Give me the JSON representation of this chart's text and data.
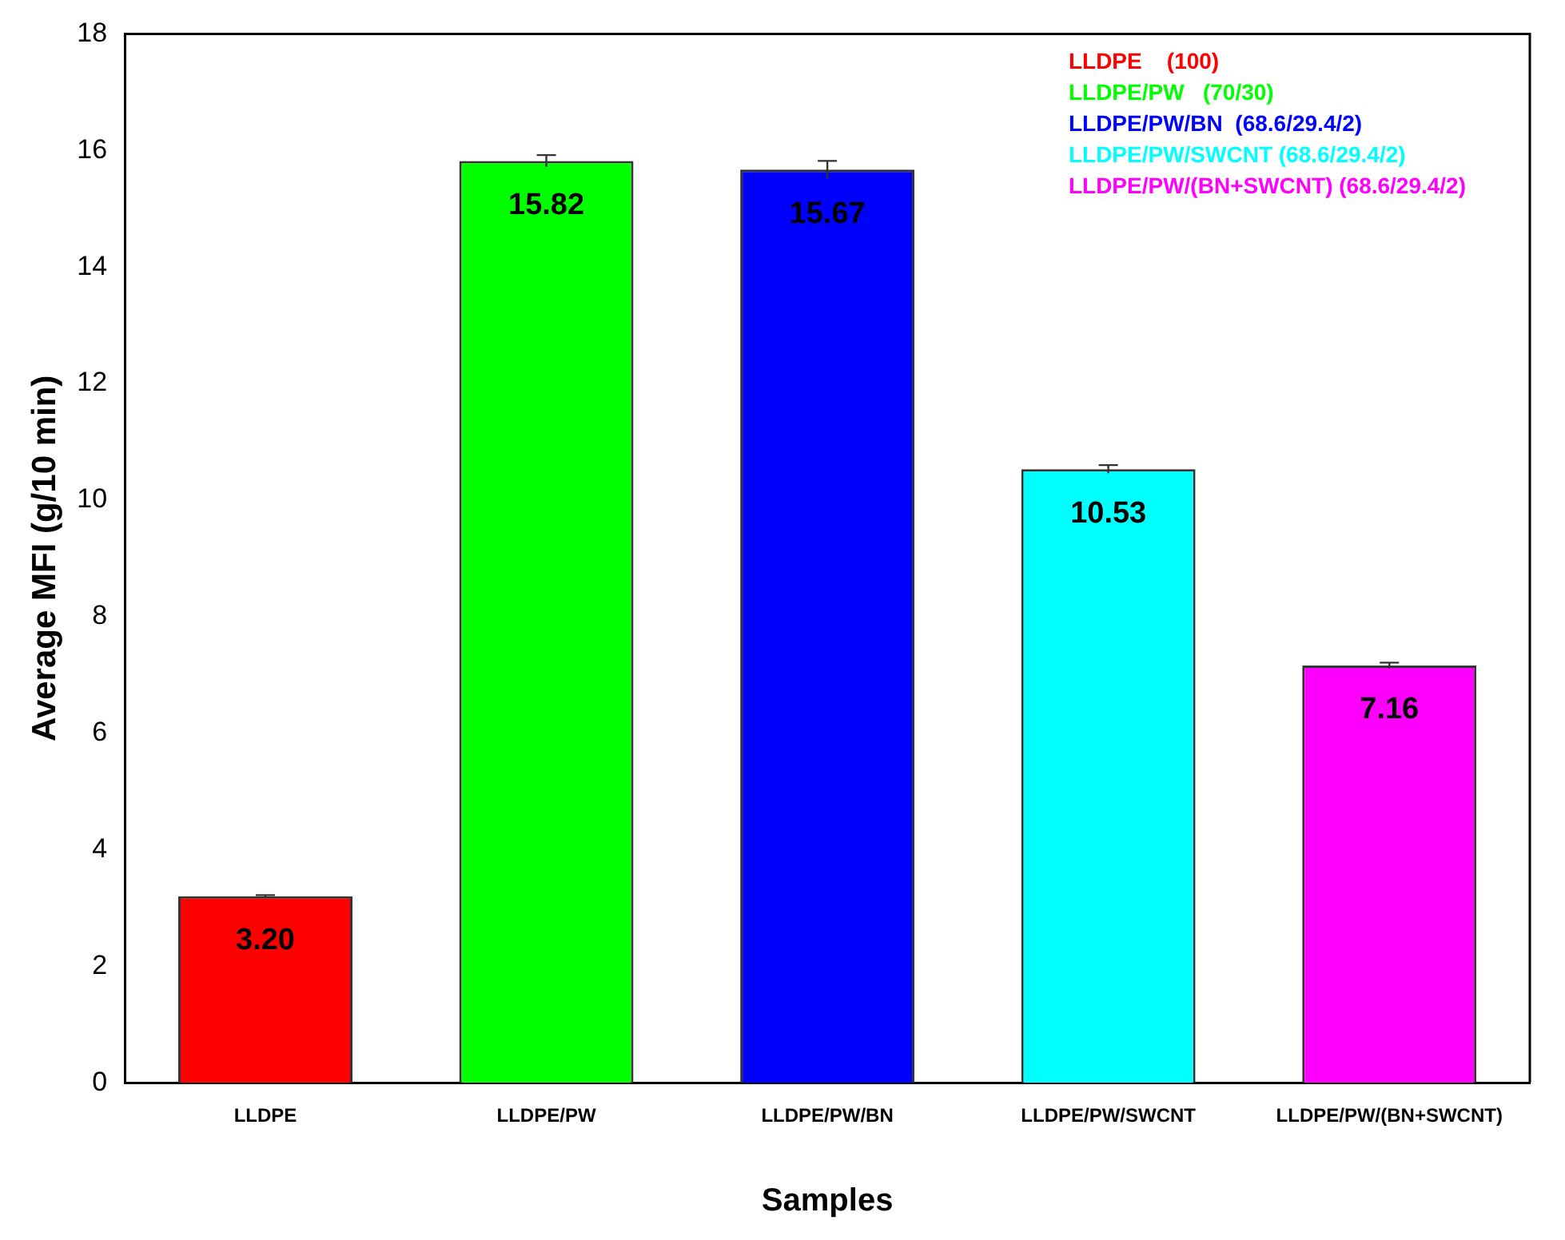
{
  "chart_data": {
    "type": "bar",
    "stacked": true,
    "xlabel": "Samples",
    "ylabel": "Average MFI (g/10 min)",
    "categories": [
      "LLDPE",
      "LLDPE/PW",
      "LLDPE/PW/BN",
      "LLDPE/PW/SWCNT",
      "LLDPE/PW/(BN+SWCNT)"
    ],
    "series": [
      {
        "name": "LLDPE    (100)",
        "color": "#ff0000",
        "values": [
          3.2,
          null,
          null,
          null,
          null
        ],
        "errors": [
          0.02,
          null,
          null,
          null,
          null
        ],
        "value_labels": [
          "3.20",
          null,
          null,
          null,
          null
        ]
      },
      {
        "name": "LLDPE/PW   (70/30)",
        "color": "#00ff00",
        "values": [
          null,
          15.82,
          null,
          null,
          null
        ],
        "errors": [
          null,
          0.1,
          null,
          null,
          null
        ],
        "value_labels": [
          null,
          "15.82",
          null,
          null,
          null
        ]
      },
      {
        "name": "LLDPE/PW/BN  (68.6/29.4/2)",
        "color": "#0000ff",
        "values": [
          null,
          null,
          15.67,
          null,
          null
        ],
        "errors": [
          null,
          null,
          0.15,
          null,
          null
        ],
        "value_labels": [
          null,
          null,
          "15.67",
          null,
          null
        ]
      },
      {
        "name": "LLDPE/PW/SWCNT (68.6/29.4/2)",
        "color": "#00ffff",
        "values": [
          null,
          null,
          null,
          10.53,
          null
        ],
        "errors": [
          null,
          null,
          null,
          0.07,
          null
        ],
        "value_labels": [
          null,
          null,
          null,
          "10.53",
          null
        ]
      },
      {
        "name": "LLDPE/PW/(BN+SWCNT) (68.6/29.4/2)",
        "color": "#ff00ff",
        "values": [
          null,
          null,
          null,
          null,
          7.16
        ],
        "errors": [
          null,
          null,
          null,
          null,
          0.05
        ],
        "value_labels": [
          null,
          null,
          null,
          null,
          "7.16"
        ]
      }
    ],
    "ylim": [
      0,
      18
    ],
    "yticks": [
      0,
      2,
      4,
      6,
      8,
      10,
      12,
      14,
      16,
      18
    ],
    "grid": false,
    "legend": "top right"
  }
}
